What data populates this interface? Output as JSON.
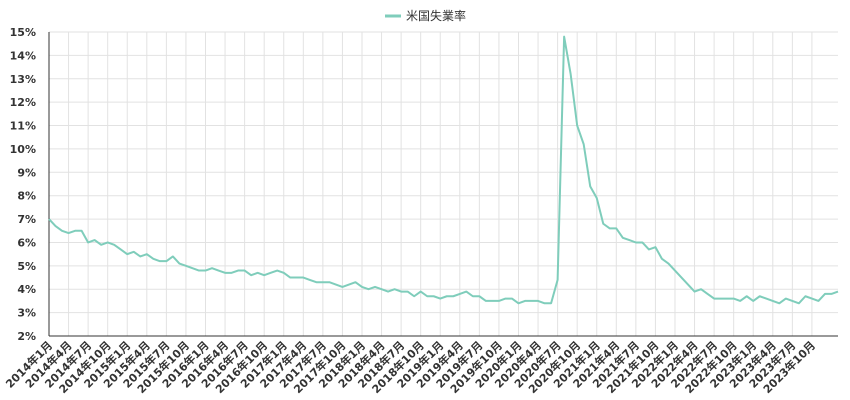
{
  "chart_data": {
    "type": "line",
    "legend": {
      "position": "top-center",
      "label": "米国失業率"
    },
    "xlabel": "",
    "ylabel": "",
    "ylim": [
      2,
      15
    ],
    "y_ticks": [
      "2%",
      "3%",
      "4%",
      "5%",
      "6%",
      "7%",
      "8%",
      "9%",
      "10%",
      "11%",
      "12%",
      "13%",
      "14%",
      "15%"
    ],
    "y_tick_values": [
      2,
      3,
      4,
      5,
      6,
      7,
      8,
      9,
      10,
      11,
      12,
      13,
      14,
      15
    ],
    "grid": true,
    "x_tick_labels": [
      "2014年1月",
      "2014年4月",
      "2014年7月",
      "2014年10月",
      "2015年1月",
      "2015年4月",
      "2015年7月",
      "2015年10月",
      "2016年1月",
      "2016年4月",
      "2016年7月",
      "2016年10月",
      "2017年1月",
      "2017年4月",
      "2017年7月",
      "2017年10月",
      "2018年1月",
      "2018年4月",
      "2018年7月",
      "2018年10月",
      "2019年1月",
      "2019年4月",
      "2019年7月",
      "2019年10月",
      "2020年1月",
      "2020年4月",
      "2020年7月",
      "2020年10月",
      "2021年1月",
      "2021年4月",
      "2021年7月",
      "2021年10月",
      "2022年1月",
      "2022年4月",
      "2022年7月",
      "2022年10月",
      "2023年1月",
      "2023年4月",
      "2023年7月",
      "2023年10月"
    ],
    "colors": {
      "series": "#7fcdbb",
      "axis": "#333333",
      "grid": "#e2e2e2"
    },
    "series": [
      {
        "name": "米国失業率",
        "x_start": "2014年1月",
        "values": [
          7.0,
          6.7,
          6.5,
          6.4,
          6.5,
          6.5,
          6.0,
          6.1,
          5.9,
          6.0,
          5.9,
          5.7,
          5.5,
          5.6,
          5.4,
          5.5,
          5.3,
          5.2,
          5.2,
          5.4,
          5.1,
          5.0,
          4.9,
          4.8,
          4.8,
          4.9,
          4.8,
          4.7,
          4.7,
          4.8,
          4.8,
          4.6,
          4.7,
          4.6,
          4.7,
          4.8,
          4.7,
          4.5,
          4.5,
          4.5,
          4.4,
          4.3,
          4.3,
          4.3,
          4.2,
          4.1,
          4.2,
          4.3,
          4.1,
          4.0,
          4.1,
          4.0,
          3.9,
          4.0,
          3.9,
          3.9,
          3.7,
          3.9,
          3.7,
          3.7,
          3.6,
          3.7,
          3.7,
          3.8,
          3.9,
          3.7,
          3.7,
          3.5,
          3.5,
          3.5,
          3.6,
          3.6,
          3.4,
          3.5,
          3.5,
          3.5,
          3.4,
          3.4,
          4.4,
          14.8,
          13.2,
          11.0,
          10.2,
          8.4,
          7.9,
          6.8,
          6.6,
          6.6,
          6.2,
          6.1,
          6.0,
          6.0,
          5.7,
          5.8,
          5.3,
          5.1,
          4.8,
          4.5,
          4.2,
          3.9,
          4.0,
          3.8,
          3.6,
          3.6,
          3.6,
          3.6,
          3.5,
          3.7,
          3.5,
          3.7,
          3.6,
          3.5,
          3.4,
          3.6,
          3.5,
          3.4,
          3.7,
          3.6,
          3.5,
          3.8,
          3.8,
          3.9
        ]
      }
    ]
  }
}
